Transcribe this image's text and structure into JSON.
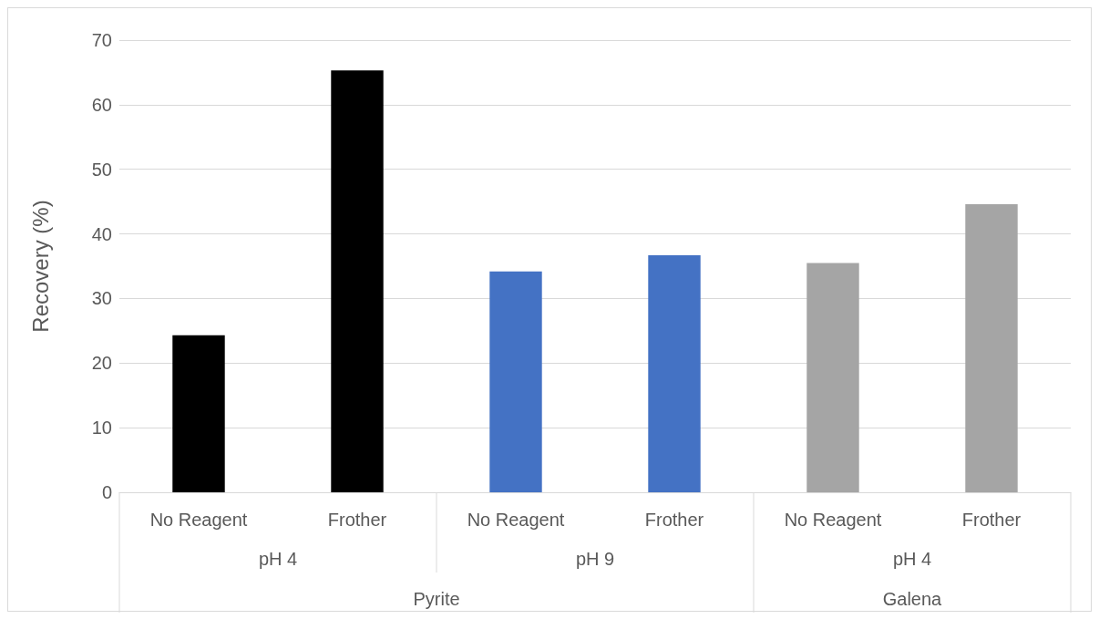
{
  "chart_data": {
    "type": "bar",
    "categories": [
      "No Reagent",
      "Frother",
      "No Reagent",
      "Frother",
      "No Reagent",
      "Frother"
    ],
    "values": [
      24.3,
      65.3,
      34.2,
      36.7,
      35.5,
      44.6
    ],
    "colors": [
      "#000000",
      "#000000",
      "#4472c4",
      "#4472c4",
      "#a5a5a5",
      "#a5a5a5"
    ],
    "ylabel": "Recovery (%)",
    "ylim": [
      0,
      70
    ],
    "yticks": [
      0,
      10,
      20,
      30,
      40,
      50,
      60,
      70
    ],
    "grid": "y",
    "annotations": [
      "pH 4",
      "pH 9",
      "pH 4",
      "Pyrite",
      "Galena"
    ]
  }
}
